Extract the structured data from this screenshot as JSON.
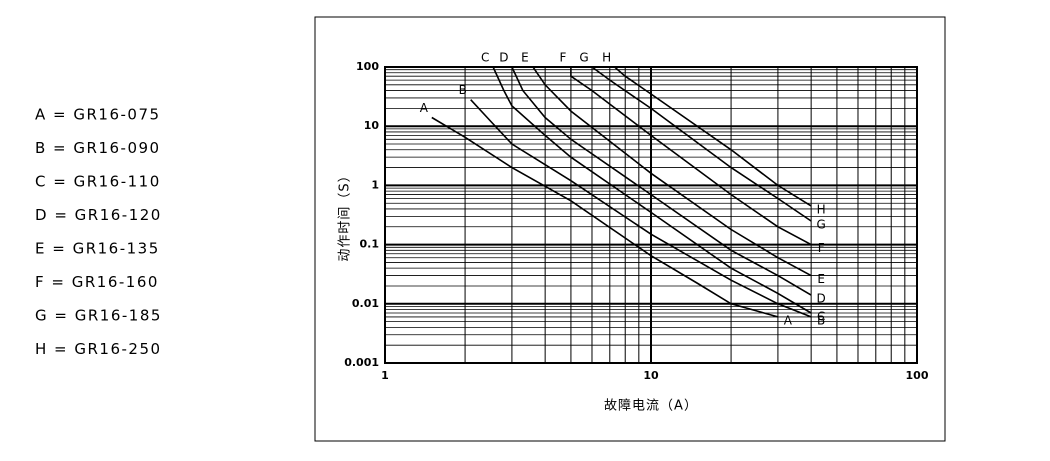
{
  "chart_data": {
    "type": "line",
    "x_label": "故障电流（A）",
    "y_label": "动作时间（S）",
    "xscale": "log",
    "yscale": "log",
    "xlim": [
      1,
      100
    ],
    "ylim": [
      0.001,
      100
    ],
    "xticks": [
      1,
      10,
      100
    ],
    "yticks": [
      0.001,
      0.01,
      0.1,
      1,
      10,
      100
    ],
    "grid": true,
    "minor_grid": true,
    "color": "#000000",
    "series": [
      {
        "name": "A",
        "label": "A = GR16-075",
        "x": [
          1.5,
          2,
          3,
          5,
          10,
          15,
          20,
          30
        ],
        "values": [
          14,
          6.5,
          2,
          0.55,
          0.065,
          0.022,
          0.01,
          0.006
        ]
      },
      {
        "name": "B",
        "label": "B = GR16-090",
        "x": [
          2.1,
          2.5,
          3,
          5,
          10,
          20,
          30,
          40
        ],
        "values": [
          28,
          12,
          5,
          1.2,
          0.15,
          0.025,
          0.01,
          0.006
        ]
      },
      {
        "name": "C",
        "label": "C = GR16-110",
        "x": [
          2.55,
          2.8,
          3,
          4,
          5,
          10,
          20,
          30,
          40
        ],
        "values": [
          100,
          40,
          22,
          7,
          3,
          0.35,
          0.04,
          0.015,
          0.007
        ]
      },
      {
        "name": "D",
        "label": "D = GR16-120",
        "x": [
          3,
          3.3,
          4,
          5,
          10,
          20,
          30,
          40
        ],
        "values": [
          100,
          40,
          14,
          6,
          0.7,
          0.08,
          0.03,
          0.014
        ]
      },
      {
        "name": "E",
        "label": "E = GR16-135",
        "x": [
          3.6,
          4,
          5,
          10,
          20,
          30,
          40
        ],
        "values": [
          100,
          50,
          18,
          1.6,
          0.18,
          0.06,
          0.03
        ]
      },
      {
        "name": "F",
        "label": "F = GR16-160",
        "x": [
          5,
          5,
          6,
          10,
          20,
          30,
          40
        ],
        "values": [
          100,
          70,
          40,
          7,
          0.7,
          0.2,
          0.1
        ]
      },
      {
        "name": "G",
        "label": "G = GR16-185",
        "x": [
          6,
          7,
          10,
          20,
          30,
          40
        ],
        "values": [
          100,
          60,
          20,
          2,
          0.6,
          0.25
        ]
      },
      {
        "name": "H",
        "label": "H = GR16-250",
        "x": [
          7.3,
          8,
          10,
          20,
          30,
          40
        ],
        "values": [
          100,
          70,
          35,
          4,
          1,
          0.45
        ]
      }
    ]
  }
}
